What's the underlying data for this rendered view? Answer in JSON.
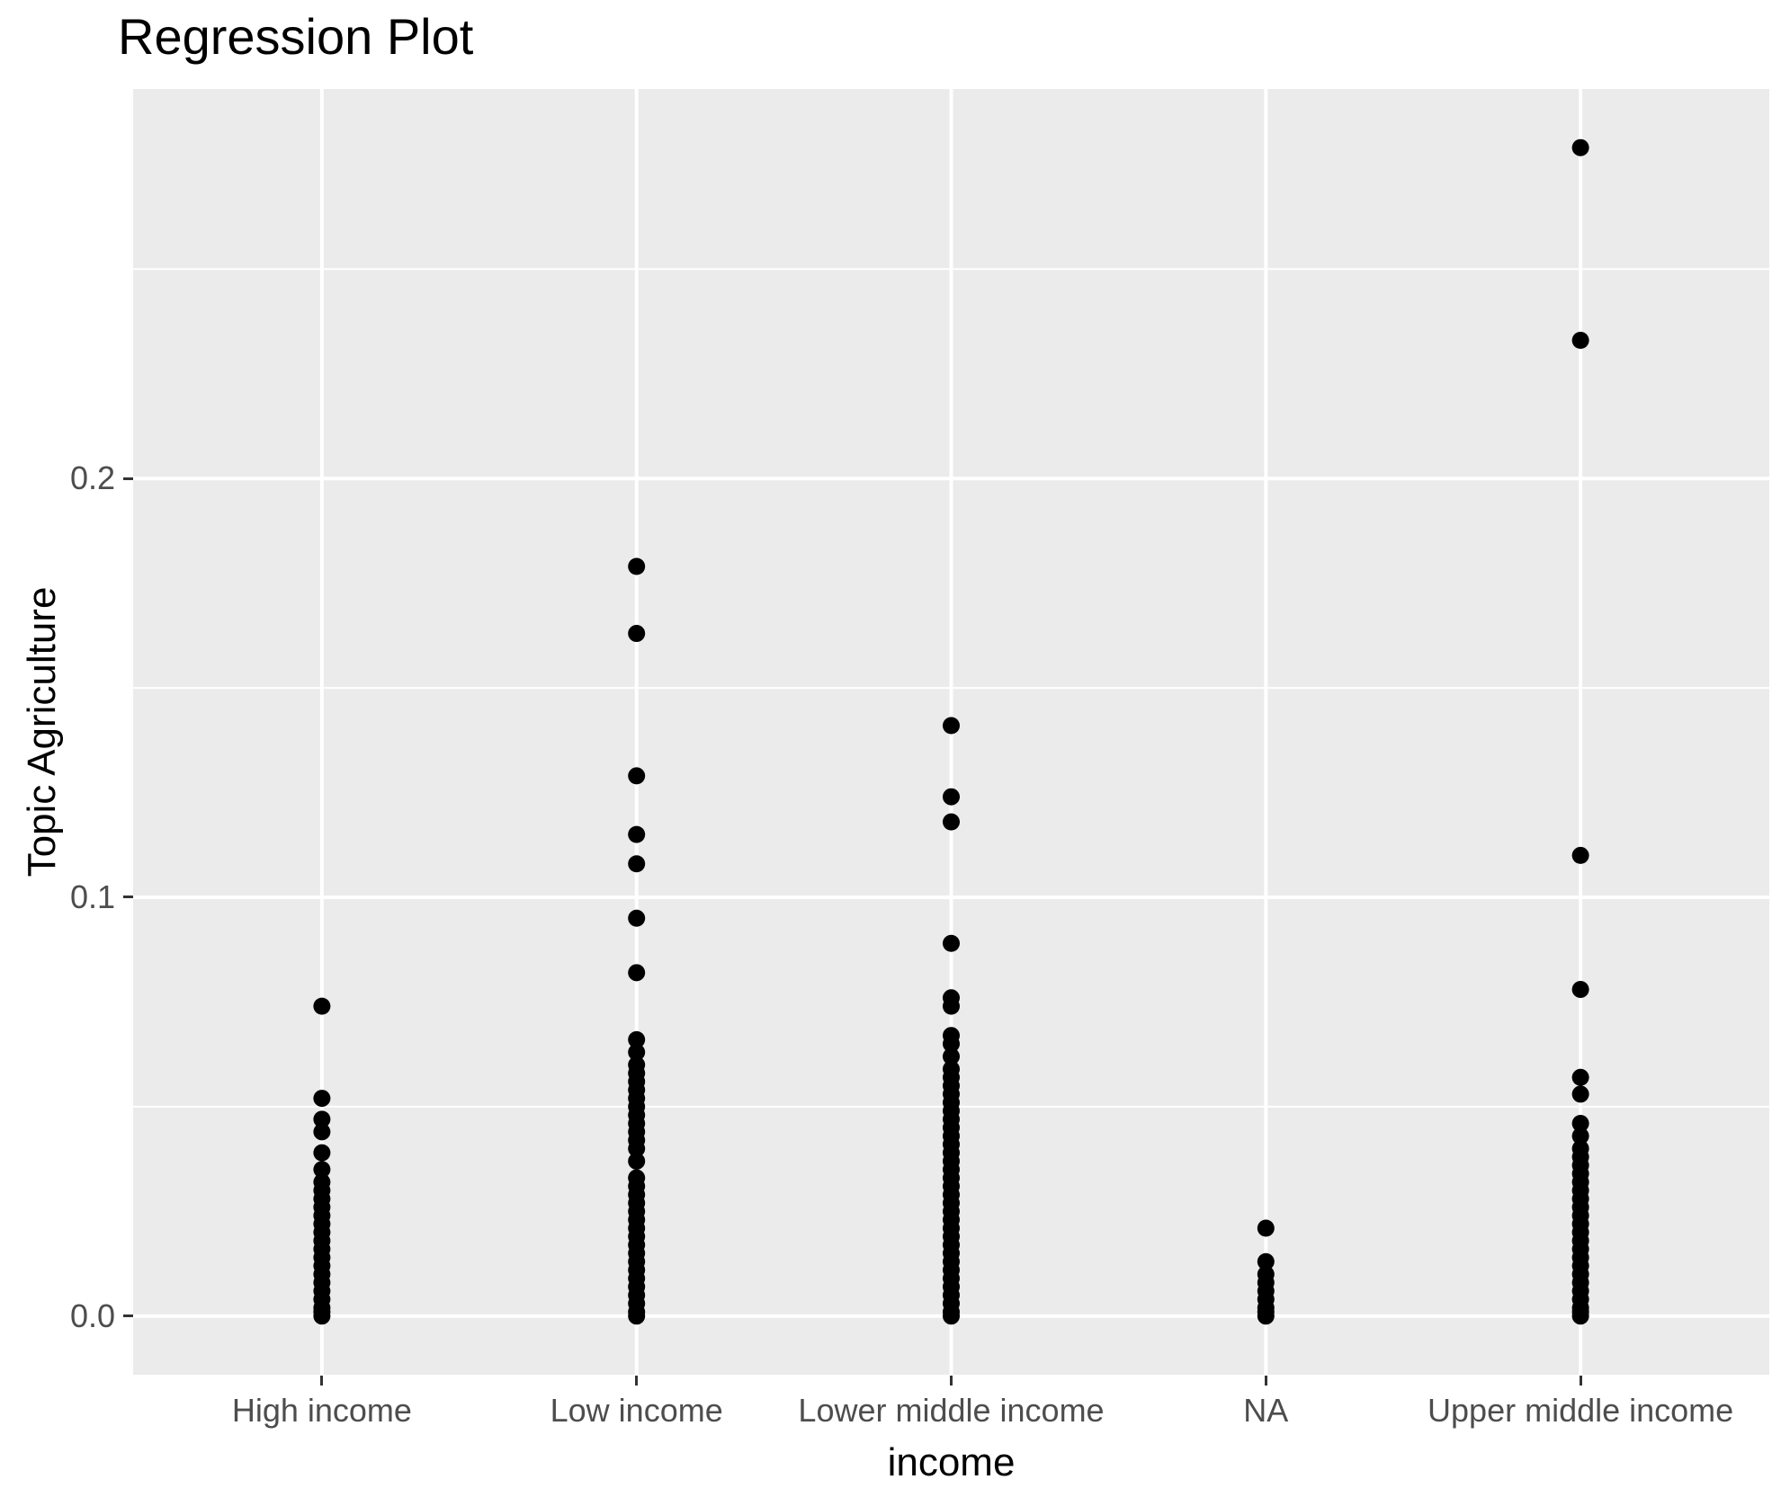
{
  "chart_data": {
    "type": "scatter",
    "title": "Regression Plot",
    "xlabel": "income",
    "ylabel": "Topic Agriculture",
    "categories": [
      "High income",
      "Low income",
      "Lower middle income",
      "NA",
      "Upper middle income"
    ],
    "y_tick_values": [
      0.0,
      0.1,
      0.2
    ],
    "y_tick_labels": [
      "0.0",
      "0.1",
      "0.2"
    ],
    "y_minor_values": [
      0.05,
      0.15,
      0.25
    ],
    "ylim": [
      -0.014,
      0.293
    ],
    "grid": "on",
    "legend": "none",
    "colors": {
      "panel_bg": "#EBEBEB",
      "grid": "#FFFFFF",
      "point": "#000000",
      "tick_text": "#4D4D4D",
      "axis_title_text": "#000000",
      "title_text": "#000000",
      "tick_mark": "#333333"
    },
    "series": [
      {
        "name": "High income",
        "values": [
          0.074,
          0.052,
          0.047,
          0.044,
          0.039,
          0.035,
          0.032,
          0.03,
          0.028,
          0.026,
          0.024,
          0.022,
          0.02,
          0.018,
          0.016,
          0.014,
          0.012,
          0.01,
          0.008,
          0.006,
          0.004,
          0.002,
          0.001,
          0.0
        ]
      },
      {
        "name": "Low income",
        "values": [
          0.179,
          0.163,
          0.129,
          0.115,
          0.108,
          0.095,
          0.082,
          0.066,
          0.063,
          0.06,
          0.058,
          0.056,
          0.054,
          0.052,
          0.05,
          0.048,
          0.046,
          0.044,
          0.042,
          0.04,
          0.037,
          0.033,
          0.031,
          0.029,
          0.027,
          0.025,
          0.023,
          0.021,
          0.019,
          0.017,
          0.015,
          0.013,
          0.011,
          0.009,
          0.007,
          0.005,
          0.003,
          0.001,
          0.0
        ]
      },
      {
        "name": "Lower middle income",
        "values": [
          0.141,
          0.124,
          0.118,
          0.089,
          0.076,
          0.074,
          0.067,
          0.065,
          0.062,
          0.059,
          0.057,
          0.055,
          0.053,
          0.051,
          0.049,
          0.047,
          0.045,
          0.043,
          0.041,
          0.039,
          0.037,
          0.035,
          0.033,
          0.031,
          0.029,
          0.027,
          0.025,
          0.023,
          0.021,
          0.019,
          0.017,
          0.015,
          0.013,
          0.011,
          0.009,
          0.007,
          0.005,
          0.003,
          0.001,
          0.0
        ]
      },
      {
        "name": "NA",
        "values": [
          0.021,
          0.013,
          0.01,
          0.008,
          0.006,
          0.004,
          0.002,
          0.001,
          0.0
        ]
      },
      {
        "name": "Upper middle income",
        "values": [
          0.279,
          0.233,
          0.11,
          0.078,
          0.057,
          0.053,
          0.046,
          0.043,
          0.04,
          0.038,
          0.036,
          0.034,
          0.032,
          0.03,
          0.028,
          0.026,
          0.024,
          0.022,
          0.02,
          0.018,
          0.016,
          0.014,
          0.012,
          0.01,
          0.008,
          0.006,
          0.004,
          0.002,
          0.001,
          0.0
        ]
      }
    ]
  }
}
